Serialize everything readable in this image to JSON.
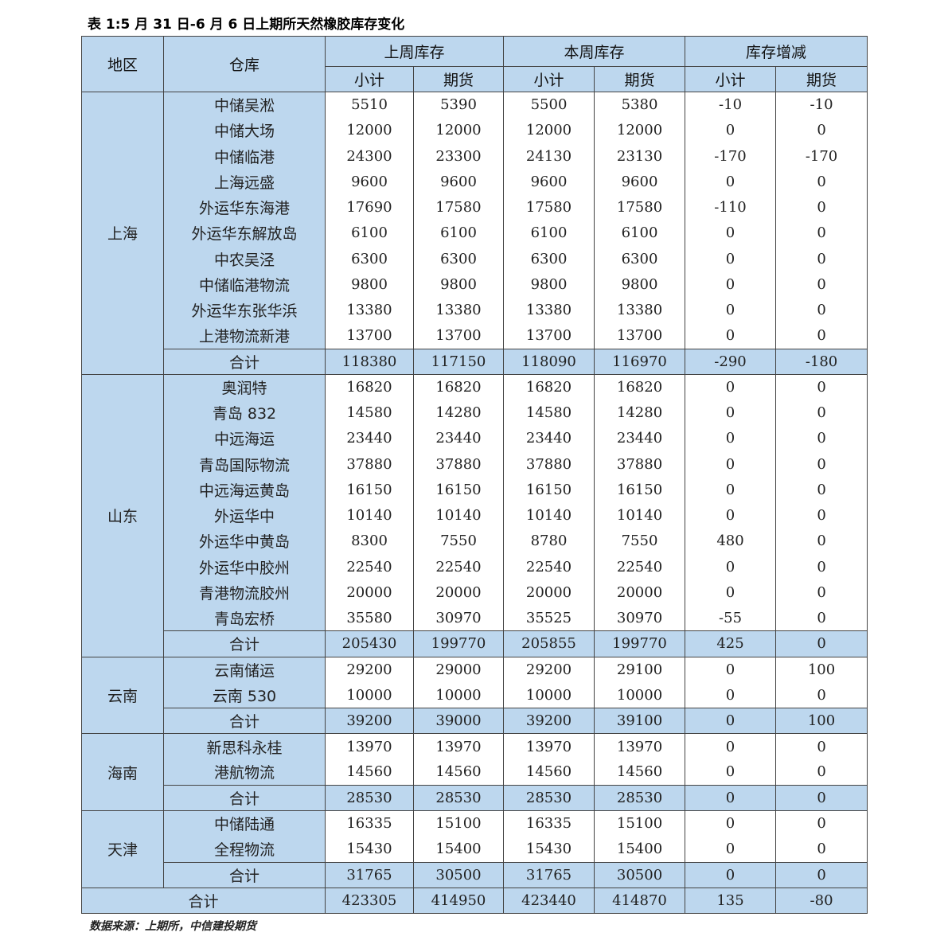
{
  "title": "表 1:5 月 31 日-6 月 6 日上期所天然橡胶库存变化",
  "header": {
    "region": "地区",
    "warehouse": "仓库",
    "groups": [
      "上周库存",
      "本周库存",
      "库存增减"
    ],
    "subcols": [
      "小计",
      "期货",
      "小计",
      "期货",
      "小计",
      "期货"
    ]
  },
  "regions": [
    {
      "name": "上海",
      "rows": [
        {
          "wh": "中储吴淞",
          "v": [
            "5510",
            "5390",
            "5500",
            "5380",
            "-10",
            "-10"
          ]
        },
        {
          "wh": "中储大场",
          "v": [
            "12000",
            "12000",
            "12000",
            "12000",
            "0",
            "0"
          ]
        },
        {
          "wh": "中储临港",
          "v": [
            "24300",
            "23300",
            "24130",
            "23130",
            "-170",
            "-170"
          ]
        },
        {
          "wh": "上海远盛",
          "v": [
            "9600",
            "9600",
            "9600",
            "9600",
            "0",
            "0"
          ]
        },
        {
          "wh": "外运华东海港",
          "v": [
            "17690",
            "17580",
            "17580",
            "17580",
            "-110",
            "0"
          ]
        },
        {
          "wh": "外运华东解放岛",
          "v": [
            "6100",
            "6100",
            "6100",
            "6100",
            "0",
            "0"
          ]
        },
        {
          "wh": "中农吴泾",
          "v": [
            "6300",
            "6300",
            "6300",
            "6300",
            "0",
            "0"
          ]
        },
        {
          "wh": "中储临港物流",
          "v": [
            "9800",
            "9800",
            "9800",
            "9800",
            "0",
            "0"
          ]
        },
        {
          "wh": "外运华东张华浜",
          "v": [
            "13380",
            "13380",
            "13380",
            "13380",
            "0",
            "0"
          ]
        },
        {
          "wh": "上港物流新港",
          "v": [
            "13700",
            "13700",
            "13700",
            "13700",
            "0",
            "0"
          ]
        }
      ],
      "subtotal": {
        "wh": "合计",
        "v": [
          "118380",
          "117150",
          "118090",
          "116970",
          "-290",
          "-180"
        ]
      }
    },
    {
      "name": "山东",
      "rows": [
        {
          "wh": "奥润特",
          "v": [
            "16820",
            "16820",
            "16820",
            "16820",
            "0",
            "0"
          ]
        },
        {
          "wh": "青岛 832",
          "v": [
            "14580",
            "14280",
            "14580",
            "14280",
            "0",
            "0"
          ]
        },
        {
          "wh": "中远海运",
          "v": [
            "23440",
            "23440",
            "23440",
            "23440",
            "0",
            "0"
          ]
        },
        {
          "wh": "青岛国际物流",
          "v": [
            "37880",
            "37880",
            "37880",
            "37880",
            "0",
            "0"
          ]
        },
        {
          "wh": "中远海运黄岛",
          "v": [
            "16150",
            "16150",
            "16150",
            "16150",
            "0",
            "0"
          ]
        },
        {
          "wh": "外运华中",
          "v": [
            "10140",
            "10140",
            "10140",
            "10140",
            "0",
            "0"
          ]
        },
        {
          "wh": "外运华中黄岛",
          "v": [
            "8300",
            "7550",
            "8780",
            "7550",
            "480",
            "0"
          ]
        },
        {
          "wh": "外运华中胶州",
          "v": [
            "22540",
            "22540",
            "22540",
            "22540",
            "0",
            "0"
          ]
        },
        {
          "wh": "青港物流胶州",
          "v": [
            "20000",
            "20000",
            "20000",
            "20000",
            "0",
            "0"
          ]
        },
        {
          "wh": "青岛宏桥",
          "v": [
            "35580",
            "30970",
            "35525",
            "30970",
            "-55",
            "0"
          ]
        }
      ],
      "subtotal": {
        "wh": "合计",
        "v": [
          "205430",
          "199770",
          "205855",
          "199770",
          "425",
          "0"
        ]
      }
    },
    {
      "name": "云南",
      "rows": [
        {
          "wh": "云南储运",
          "v": [
            "29200",
            "29000",
            "29200",
            "29100",
            "0",
            "100"
          ]
        },
        {
          "wh": "云南 530",
          "v": [
            "10000",
            "10000",
            "10000",
            "10000",
            "0",
            "0"
          ]
        }
      ],
      "subtotal": {
        "wh": "合计",
        "v": [
          "39200",
          "39000",
          "39200",
          "39100",
          "0",
          "100"
        ]
      }
    },
    {
      "name": "海南",
      "rows": [
        {
          "wh": "新思科永桂",
          "v": [
            "13970",
            "13970",
            "13970",
            "13970",
            "0",
            "0"
          ]
        },
        {
          "wh": "港航物流",
          "v": [
            "14560",
            "14560",
            "14560",
            "14560",
            "0",
            "0"
          ]
        }
      ],
      "subtotal": {
        "wh": "合计",
        "v": [
          "28530",
          "28530",
          "28530",
          "28530",
          "0",
          "0"
        ]
      }
    },
    {
      "name": "天津",
      "rows": [
        {
          "wh": "中储陆通",
          "v": [
            "16335",
            "15100",
            "16335",
            "15100",
            "0",
            "0"
          ]
        },
        {
          "wh": "全程物流",
          "v": [
            "15430",
            "15400",
            "15430",
            "15400",
            "0",
            "0"
          ]
        }
      ],
      "subtotal": {
        "wh": "合计",
        "v": [
          "31765",
          "30500",
          "31765",
          "30500",
          "0",
          "0"
        ]
      }
    }
  ],
  "grand_total": {
    "label": "合计",
    "v": [
      "423305",
      "414950",
      "423440",
      "414870",
      "135",
      "-80"
    ]
  },
  "source": "数据来源：上期所，中信建投期货",
  "colors": {
    "header_bg": "#bdd7ee",
    "border": "#444444"
  }
}
